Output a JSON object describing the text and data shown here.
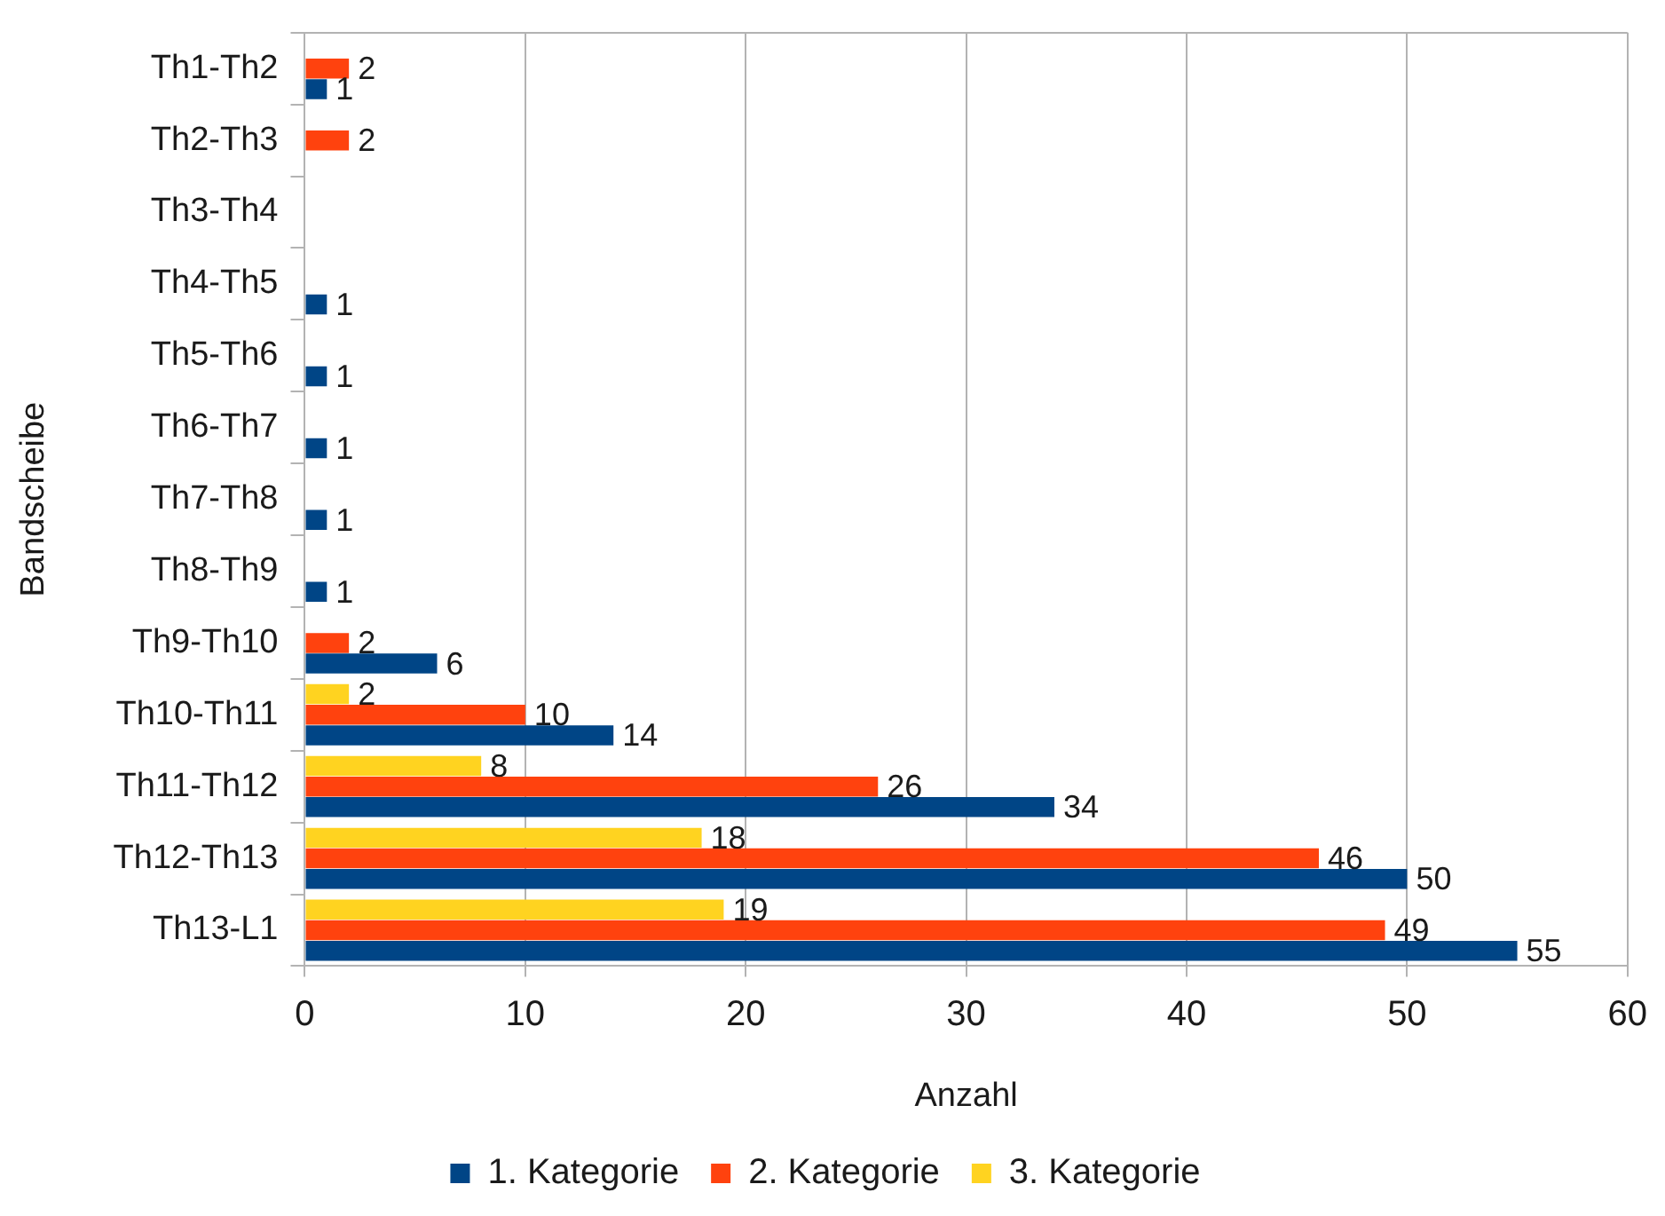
{
  "chart_data": {
    "type": "bar",
    "orientation": "horizontal",
    "xlabel": "Anzahl",
    "ylabel": "Bandscheibe",
    "categories": [
      "Th1-Th2",
      "Th2-Th3",
      "Th3-Th4",
      "Th4-Th5",
      "Th5-Th6",
      "Th6-Th7",
      "Th7-Th8",
      "Th8-Th9",
      "Th9-Th10",
      "Th10-Th11",
      "Th11-Th12",
      "Th12-Th13",
      "Th13-L1"
    ],
    "series": [
      {
        "name": "1. Kategorie",
        "color": "#004586",
        "values": [
          1,
          null,
          null,
          1,
          1,
          1,
          1,
          1,
          6,
          14,
          34,
          50,
          55
        ]
      },
      {
        "name": "2. Kategorie",
        "color": "#ff420e",
        "values": [
          2,
          2,
          null,
          null,
          null,
          null,
          null,
          null,
          2,
          10,
          26,
          46,
          49
        ]
      },
      {
        "name": "3. Kategorie",
        "color": "#ffd320",
        "values": [
          null,
          null,
          null,
          null,
          null,
          null,
          null,
          null,
          null,
          2,
          8,
          18,
          19
        ]
      }
    ],
    "xlim": [
      0,
      60
    ],
    "xticks": [
      0,
      10,
      20,
      30,
      40,
      50,
      60
    ],
    "grid": "x",
    "legend": "bottom",
    "data_labels": true
  }
}
